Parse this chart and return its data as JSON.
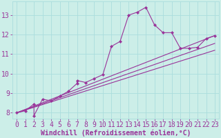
{
  "xlabel": "Windchill (Refroidissement éolien,°C)",
  "background_color": "#cceee8",
  "grid_color": "#aadddd",
  "line_color": "#993399",
  "series": [
    [
      0,
      8.0
    ],
    [
      1,
      8.1
    ],
    [
      2,
      8.45
    ],
    [
      2,
      7.85
    ],
    [
      3,
      8.7
    ],
    [
      4,
      8.6
    ],
    [
      5,
      8.85
    ],
    [
      6,
      9.1
    ],
    [
      7,
      9.5
    ],
    [
      7,
      9.65
    ],
    [
      8,
      9.55
    ],
    [
      9,
      9.75
    ],
    [
      10,
      9.95
    ],
    [
      11,
      11.4
    ],
    [
      12,
      11.65
    ],
    [
      13,
      13.0
    ],
    [
      14,
      13.15
    ],
    [
      15,
      13.4
    ],
    [
      16,
      12.5
    ],
    [
      17,
      12.1
    ],
    [
      18,
      12.1
    ],
    [
      19,
      11.3
    ],
    [
      20,
      11.3
    ],
    [
      21,
      11.35
    ],
    [
      22,
      11.8
    ],
    [
      23,
      11.95
    ]
  ],
  "straight_lines": [
    [
      [
        0,
        8.0
      ],
      [
        23,
        11.95
      ]
    ],
    [
      [
        0,
        8.0
      ],
      [
        23,
        11.55
      ]
    ],
    [
      [
        0,
        8.0
      ],
      [
        23,
        11.2
      ]
    ]
  ],
  "ylim": [
    7.7,
    13.7
  ],
  "xlim": [
    -0.5,
    23.5
  ],
  "yticks": [
    8,
    9,
    10,
    11,
    12,
    13
  ],
  "xticks": [
    0,
    1,
    2,
    3,
    4,
    5,
    6,
    7,
    8,
    9,
    10,
    11,
    12,
    13,
    14,
    15,
    16,
    17,
    18,
    19,
    20,
    21,
    22,
    23
  ],
  "tick_fontsize": 7,
  "xlabel_fontsize": 7
}
